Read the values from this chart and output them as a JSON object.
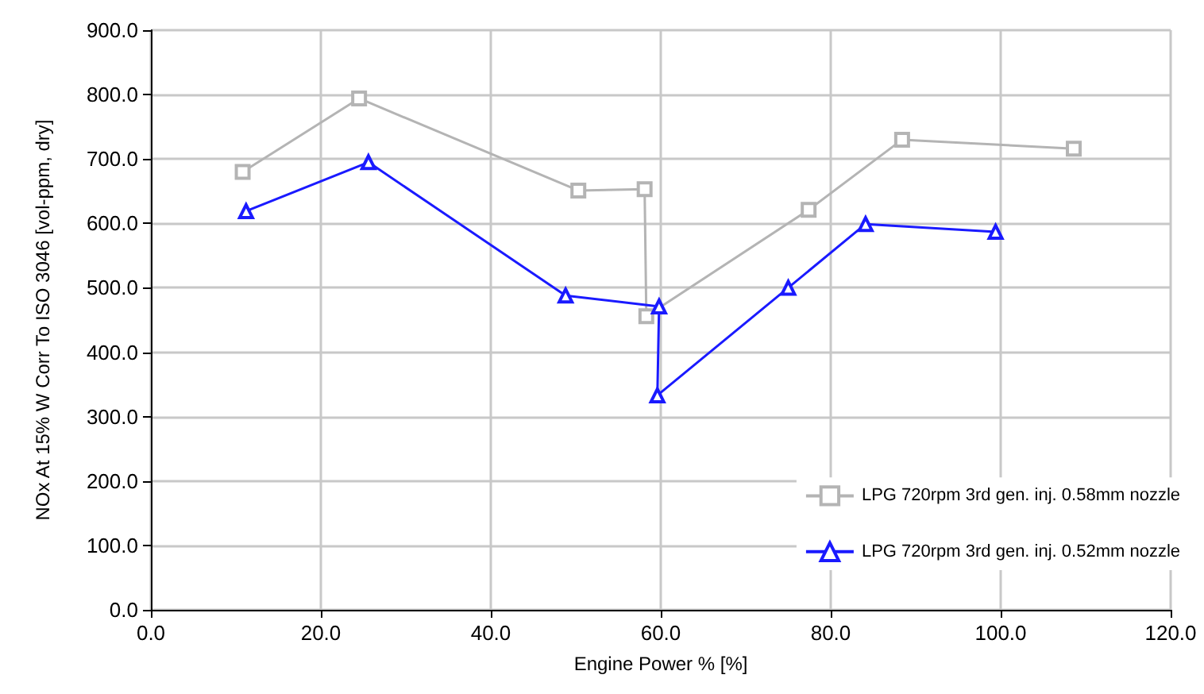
{
  "chart_data": {
    "type": "line",
    "xlabel": "Engine Power % [%]",
    "ylabel": "NOx At 15% W Corr To ISO 3046 [vol-ppm, dry]",
    "xlim": [
      0,
      120
    ],
    "ylim": [
      0,
      900
    ],
    "xticks": [
      {
        "value": 0,
        "label": "0.0"
      },
      {
        "value": 20,
        "label": "20.0"
      },
      {
        "value": 40,
        "label": "40.0"
      },
      {
        "value": 60,
        "label": "60.0"
      },
      {
        "value": 80,
        "label": "80.0"
      },
      {
        "value": 100,
        "label": "100.0"
      },
      {
        "value": 120,
        "label": "120.0"
      }
    ],
    "yticks": [
      {
        "value": 0,
        "label": "0.0"
      },
      {
        "value": 100,
        "label": "100.0"
      },
      {
        "value": 200,
        "label": "200.0"
      },
      {
        "value": 300,
        "label": "300.0"
      },
      {
        "value": 400,
        "label": "400.0"
      },
      {
        "value": 500,
        "label": "500.0"
      },
      {
        "value": 600,
        "label": "600.0"
      },
      {
        "value": 700,
        "label": "700.0"
      },
      {
        "value": 800,
        "label": "800.0"
      },
      {
        "value": 900,
        "label": "900.0"
      }
    ],
    "grid": true,
    "legend": "bottom right",
    "series": [
      {
        "name": "LPG 720rpm 3rd gen. inj. 0.58mm nozzle",
        "color": "#b4b4b4",
        "marker": "square",
        "x": [
          10.8,
          24.5,
          50.3,
          58.1,
          58.3,
          77.4,
          88.4,
          108.6
        ],
        "values": [
          680,
          794,
          651,
          653,
          456,
          621,
          730,
          716
        ]
      },
      {
        "name": "LPG 720rpm 3rd gen. inj. 0.52mm nozzle",
        "color": "#1a1aff",
        "marker": "triangle",
        "x": [
          11.2,
          25.6,
          48.8,
          59.8,
          59.6,
          75.0,
          84.1,
          99.4
        ],
        "values": [
          619,
          695,
          488,
          471,
          333,
          500,
          599,
          587
        ]
      }
    ]
  }
}
